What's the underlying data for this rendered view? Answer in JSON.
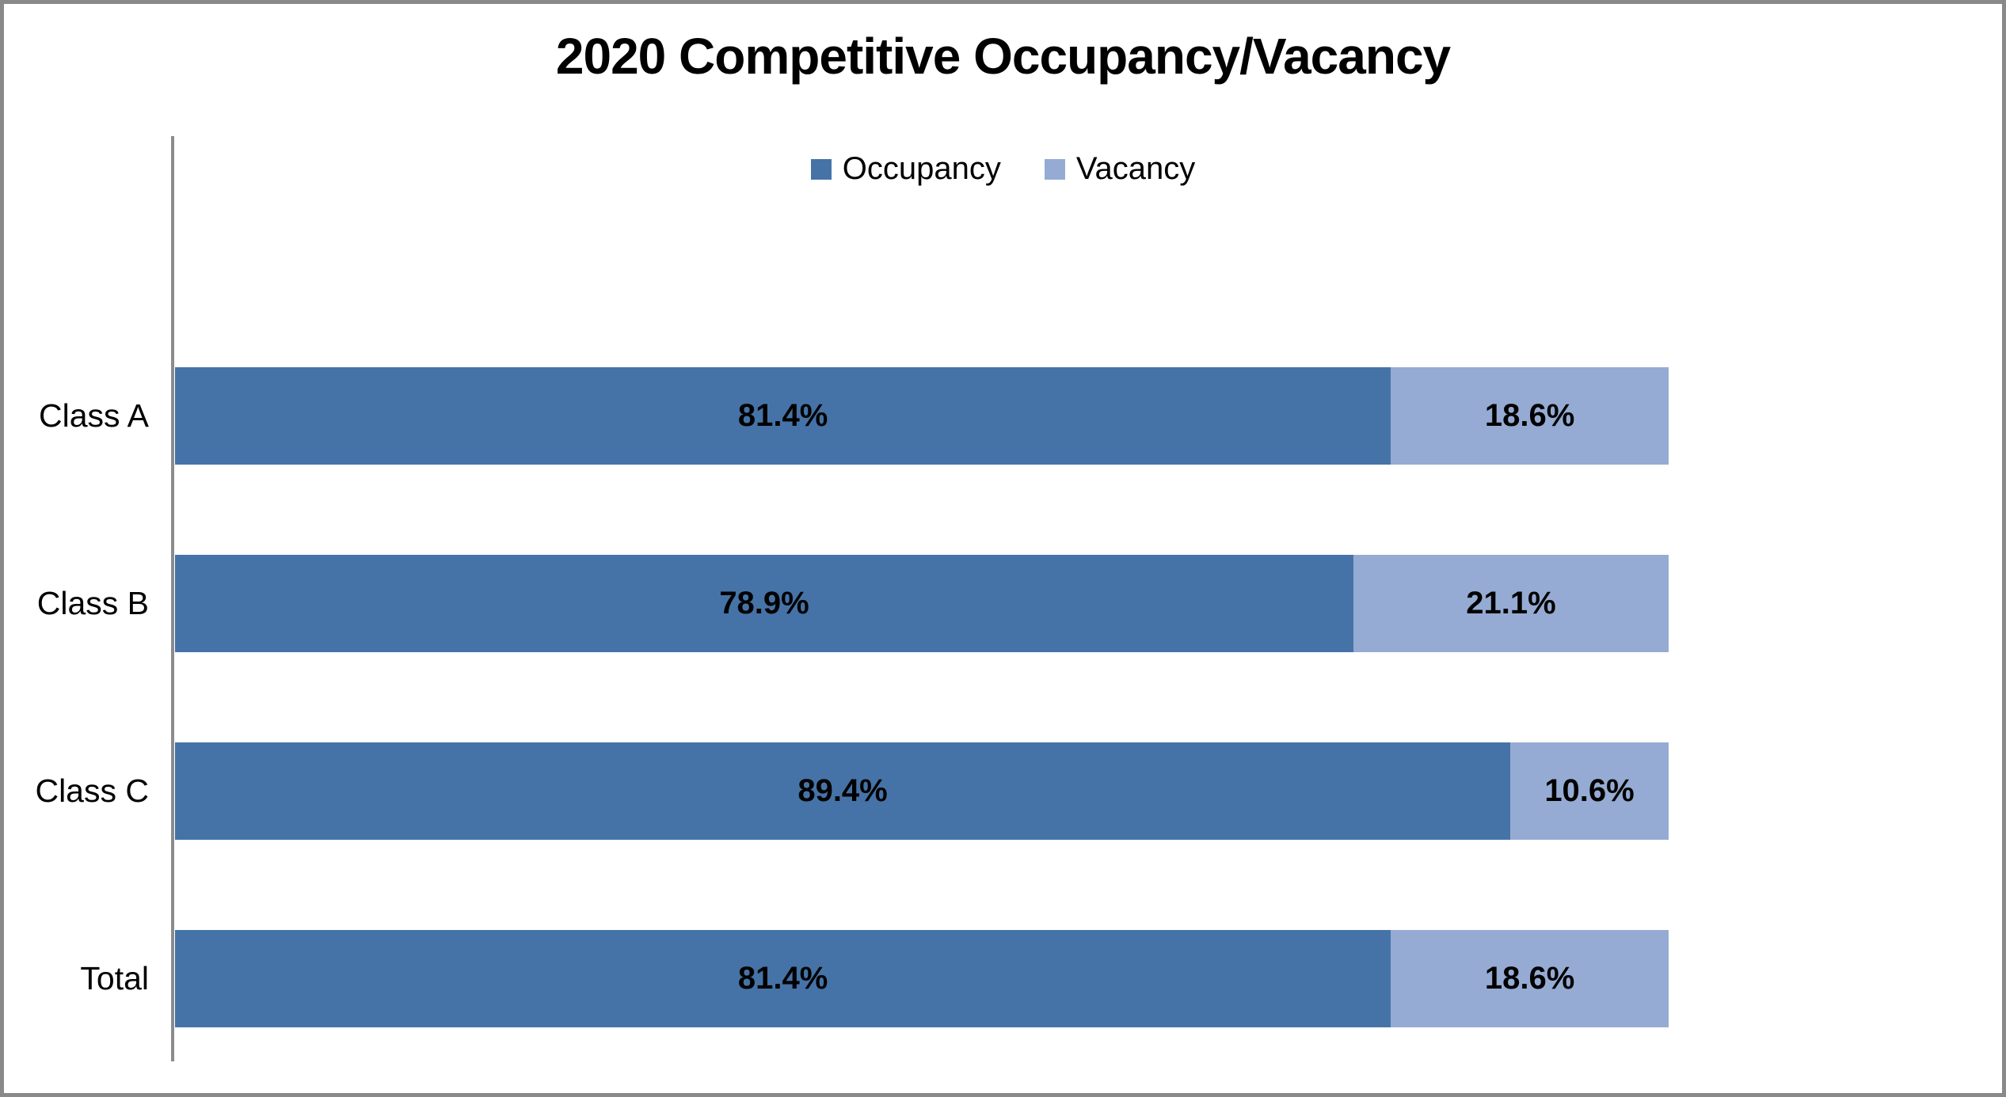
{
  "chart_data": {
    "type": "bar",
    "orientation": "horizontal",
    "stacked": true,
    "percent_stacked": true,
    "title": "2020 Competitive Occupancy/Vacancy",
    "categories": [
      "Class A",
      "Class B",
      "Class C",
      "Total"
    ],
    "series": [
      {
        "name": "Occupancy",
        "color": "#4573A7",
        "values": [
          81.4,
          78.9,
          89.4,
          81.4
        ]
      },
      {
        "name": "Vacancy",
        "color": "#95ABD3",
        "values": [
          18.6,
          21.1,
          10.6,
          18.6
        ]
      }
    ],
    "value_labels": [
      [
        "81.4%",
        "18.6%"
      ],
      [
        "78.9%",
        "21.1%"
      ],
      [
        "89.4%",
        "10.6%"
      ],
      [
        "81.4%",
        "18.6%"
      ]
    ],
    "xlim": [
      0,
      100
    ],
    "grid": false,
    "legend_position": "top-center",
    "axis_line_color": "#8C8C8C",
    "frame_color": "#898989",
    "background_color": "#FFFFFF",
    "text_color": "#000000"
  }
}
